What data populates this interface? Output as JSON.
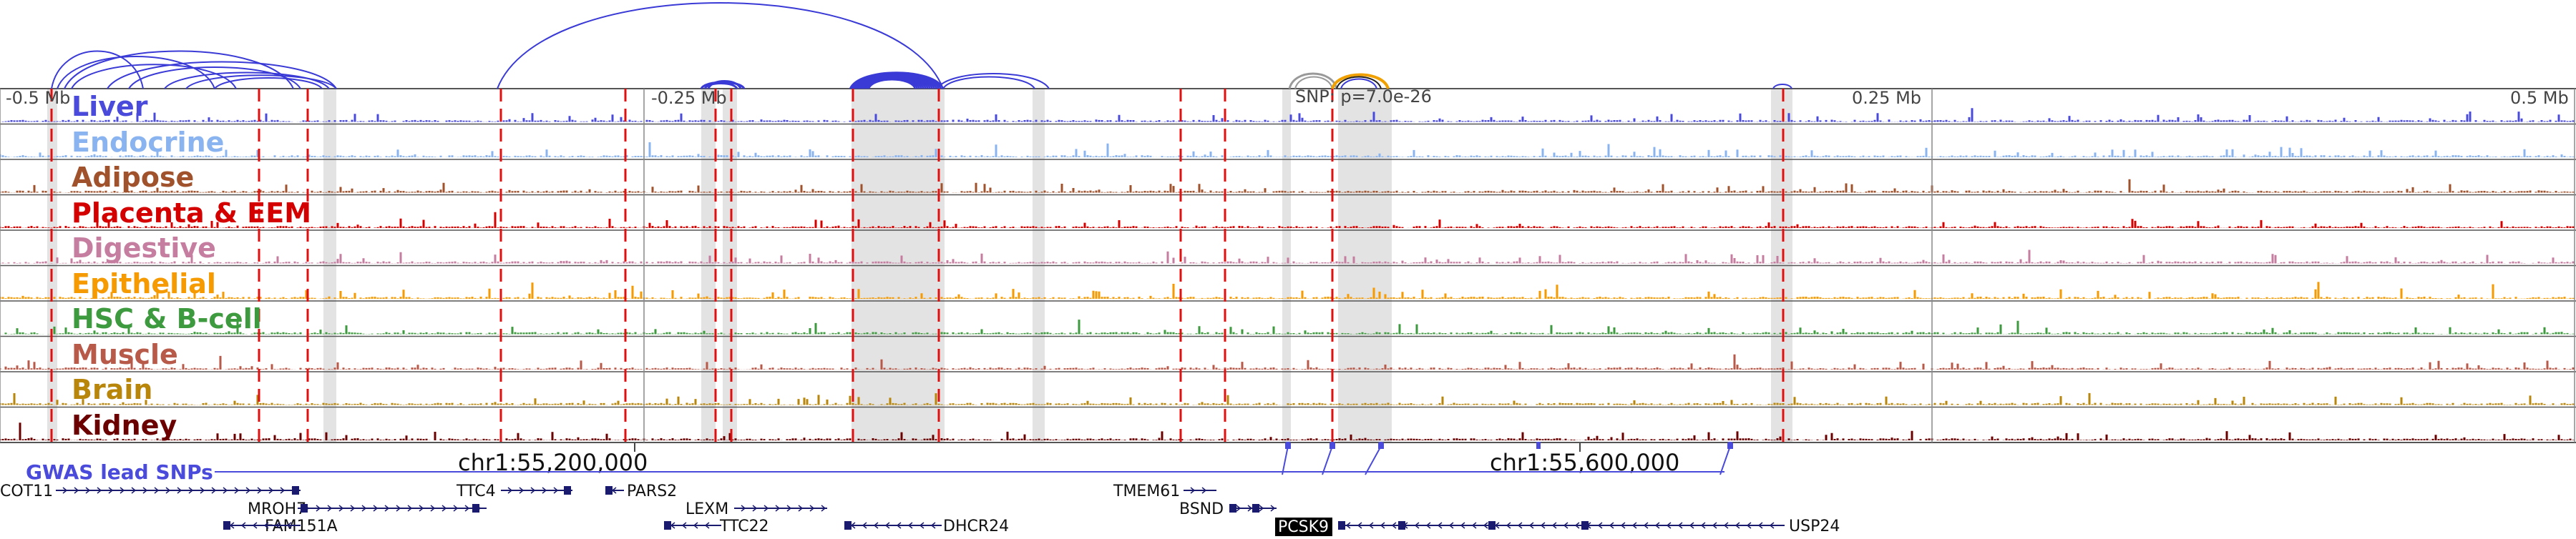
{
  "scale_labels": [
    "-0.5 Mb",
    "-0.25 Mb",
    "0.25 Mb",
    "0.5 Mb"
  ],
  "snp_label": "SNP: p=7.0e-26",
  "tracks": [
    {
      "name": "Liver",
      "color": "#4a4adb"
    },
    {
      "name": "Endocrine",
      "color": "#8ab4f0"
    },
    {
      "name": "Adipose",
      "color": "#a0522d"
    },
    {
      "name": "Placenta & EEM",
      "color": "#d40000"
    },
    {
      "name": "Digestive",
      "color": "#c57ea0"
    },
    {
      "name": "Epithelial",
      "color": "#f59a00"
    },
    {
      "name": "HSC & B-cell",
      "color": "#3e9a3e"
    },
    {
      "name": "Muscle",
      "color": "#b85a4a"
    },
    {
      "name": "Brain",
      "color": "#b8860b"
    },
    {
      "name": "Kidney",
      "color": "#6b0000"
    }
  ],
  "coordinates": [
    "chr1:55,200,000",
    "chr1:55,600,000"
  ],
  "gwas_label": "GWAS lead SNPs",
  "genes": [
    {
      "name": "COT11",
      "highlight": false
    },
    {
      "name": "MROH7",
      "highlight": false
    },
    {
      "name": "FAM151A",
      "highlight": false
    },
    {
      "name": "TTC4",
      "highlight": false
    },
    {
      "name": "PARS2",
      "highlight": false
    },
    {
      "name": "LEXM",
      "highlight": false
    },
    {
      "name": "TTC22",
      "highlight": false
    },
    {
      "name": "DHCR24",
      "highlight": false
    },
    {
      "name": "TMEM61",
      "highlight": false
    },
    {
      "name": "BSND",
      "highlight": false
    },
    {
      "name": "PCSK9",
      "highlight": true
    },
    {
      "name": "USP24",
      "highlight": false
    }
  ],
  "colors": {
    "arc": "#3a3ad6",
    "arc_highlight": "#f0a000",
    "arc_gray": "#999999",
    "red_dash": "#e01010",
    "gray_band": "#cccccc",
    "gene": "#1a1a6e",
    "gwas": "#4a4adb"
  }
}
